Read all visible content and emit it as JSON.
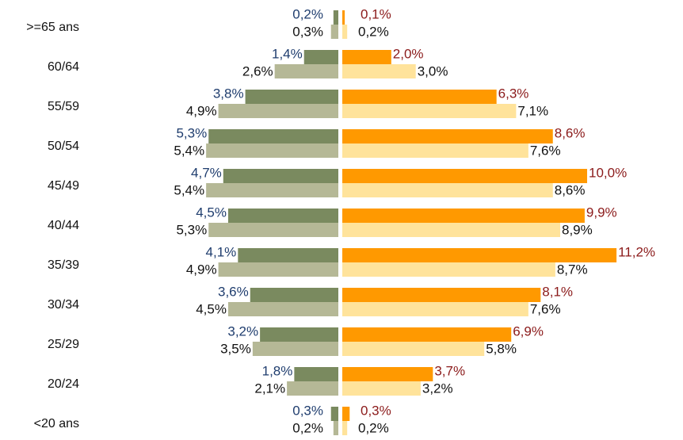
{
  "chart_data": {
    "type": "pyramid",
    "categories": [
      ">=65 ans",
      "60/64",
      "55/59",
      "50/54",
      "45/49",
      "40/44",
      "35/39",
      "30/34",
      "25/29",
      "20/24",
      "<20 ans"
    ],
    "series": [
      {
        "side": "left",
        "color": "#7a8a5f",
        "label_color": "#1f3d6e",
        "values": [
          0.2,
          1.4,
          3.8,
          5.3,
          4.7,
          4.5,
          4.1,
          3.6,
          3.2,
          1.8,
          0.3
        ],
        "value_labels": [
          "0,2%",
          "1,4%",
          "3,8%",
          "5,3%",
          "4,7%",
          "4,5%",
          "4,1%",
          "3,6%",
          "3,2%",
          "1,8%",
          "0,3%"
        ]
      },
      {
        "side": "left",
        "color": "#b5b896",
        "label_color": "#111111",
        "values": [
          0.3,
          2.6,
          4.9,
          5.4,
          5.4,
          5.3,
          4.9,
          4.5,
          3.5,
          2.1,
          0.2
        ],
        "value_labels": [
          "0,3%",
          "2,6%",
          "4,9%",
          "5,4%",
          "5,4%",
          "5,3%",
          "4,9%",
          "4,5%",
          "3,5%",
          "2,1%",
          "0,2%"
        ]
      },
      {
        "side": "right",
        "color": "#ff9900",
        "label_color": "#8b1a1a",
        "values": [
          0.1,
          2.0,
          6.3,
          8.6,
          10.0,
          9.9,
          11.2,
          8.1,
          6.9,
          3.7,
          0.3
        ],
        "value_labels": [
          "0,1%",
          "2,0%",
          "6,3%",
          "8,6%",
          "10,0%",
          "9,9%",
          "11,2%",
          "8,1%",
          "6,9%",
          "3,7%",
          "0,3%"
        ]
      },
      {
        "side": "right",
        "color": "#ffe39b",
        "label_color": "#111111",
        "values": [
          0.2,
          3.0,
          7.1,
          7.6,
          8.6,
          8.9,
          8.7,
          7.6,
          5.8,
          3.2,
          0.2
        ],
        "value_labels": [
          "0,2%",
          "3,0%",
          "7,1%",
          "7,6%",
          "8,6%",
          "8,9%",
          "8,7%",
          "7,6%",
          "5,8%",
          "3,2%",
          "0,2%"
        ]
      }
    ]
  }
}
